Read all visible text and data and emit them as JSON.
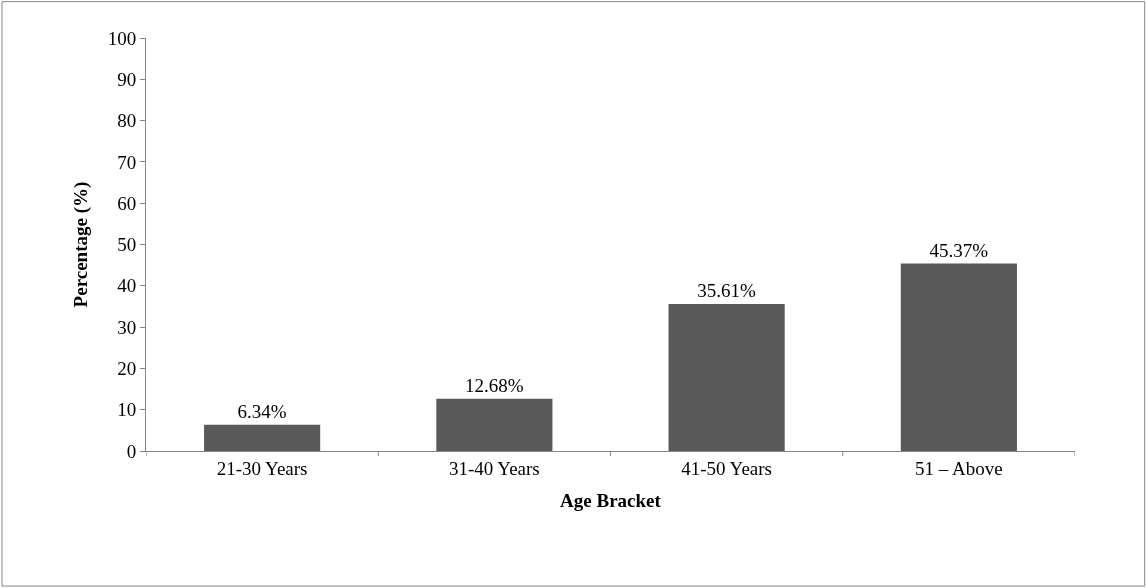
{
  "chart_data": {
    "type": "bar",
    "xlabel": "Age Bracket",
    "ylabel": "Percentage (%)",
    "categories": [
      "21-30 Years",
      "31-40 Years",
      "41-50 Years",
      "51 – Above"
    ],
    "values": [
      6.34,
      12.68,
      35.61,
      45.37
    ],
    "value_labels": [
      "6.34%",
      "12.68%",
      "35.61%",
      "45.37%"
    ],
    "color": "#595959",
    "ylim": [
      0,
      100
    ],
    "yticks": [
      0,
      10,
      20,
      30,
      40,
      50,
      60,
      70,
      80,
      90,
      100
    ]
  }
}
